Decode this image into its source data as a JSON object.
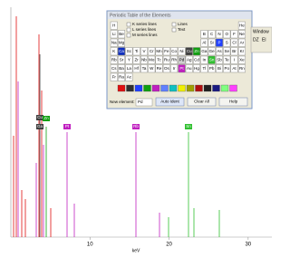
{
  "spectrum": {
    "x_label": "keV",
    "xlim": [
      0,
      33
    ],
    "xticks": [
      10,
      20,
      30
    ],
    "peak_labels": [
      "Cu",
      "Zn",
      "Ga",
      "Pt",
      "Rb",
      "Sn"
    ]
  },
  "dialog": {
    "title": "Periodic Table of the Elements",
    "options": [
      "K series lines",
      "L series lines",
      "M series lines"
    ],
    "toggles": [
      "Lines",
      "Text"
    ],
    "table": [
      [
        "H",
        null,
        null,
        null,
        null,
        null,
        null,
        null,
        null,
        null,
        null,
        null,
        null,
        null,
        null,
        null,
        null,
        "He"
      ],
      [
        "Li",
        "Be",
        null,
        null,
        null,
        null,
        null,
        null,
        null,
        null,
        null,
        null,
        "B",
        "C",
        "N",
        "O",
        "F",
        "Ne"
      ],
      [
        "Na",
        "Mg",
        null,
        null,
        null,
        null,
        null,
        null,
        null,
        null,
        null,
        null,
        "Al",
        "Si",
        "P",
        "S",
        "Cl",
        "Ar"
      ],
      [
        "K",
        "Ca",
        "Sc",
        "Ti",
        "V",
        "Cr",
        "Mn",
        "Fe",
        "Co",
        "Ni",
        "Cu",
        "Zn",
        "Ga",
        "Ge",
        "As",
        "Se",
        "Br",
        "Kr"
      ],
      [
        "Rb",
        "Sr",
        "Y",
        "Zr",
        "Nb",
        "Mo",
        "Tc",
        "Ru",
        "Rh",
        "Pd",
        "Ag",
        "Cd",
        "In",
        "Sn",
        "Sb",
        "Te",
        "I",
        "Xe"
      ],
      [
        "Cs",
        "Ba",
        "La",
        "Hf",
        "Ta",
        "W",
        "Re",
        "Os",
        "Ir",
        "Pt",
        "Au",
        "Hg",
        "Tl",
        "Pb",
        "Bi",
        "Po",
        "At",
        "Rn"
      ],
      [
        "Fr",
        "Ra",
        "Ac",
        null,
        null,
        null,
        null,
        null,
        null,
        null,
        null,
        null,
        null,
        null,
        null,
        null,
        null,
        null
      ]
    ],
    "marked": {
      "Ca": "#1030c0",
      "Cu": "#404040",
      "Zn": "#10a010",
      "Pt": "#c020c0",
      "Sn": "#30c030",
      "P": "#2040ff",
      "Pd": "#d0d0d0"
    },
    "swatches": [
      "#e01010",
      "#303030",
      "#2040ff",
      "#10a010",
      "#c020c0",
      "#6080ff",
      "#10c0c0",
      "#f0f000",
      "#a0a000",
      "#b01010",
      "#202020",
      "#1a1a80",
      "#80ff80",
      "#ff40ff"
    ],
    "new_element_label": "New element:",
    "new_element": "Pd",
    "buttons": [
      "Auto Ident",
      "Clear All",
      "Help"
    ]
  },
  "side_panel": {
    "title": "Window",
    "items": [
      "DZ",
      "El"
    ]
  }
}
